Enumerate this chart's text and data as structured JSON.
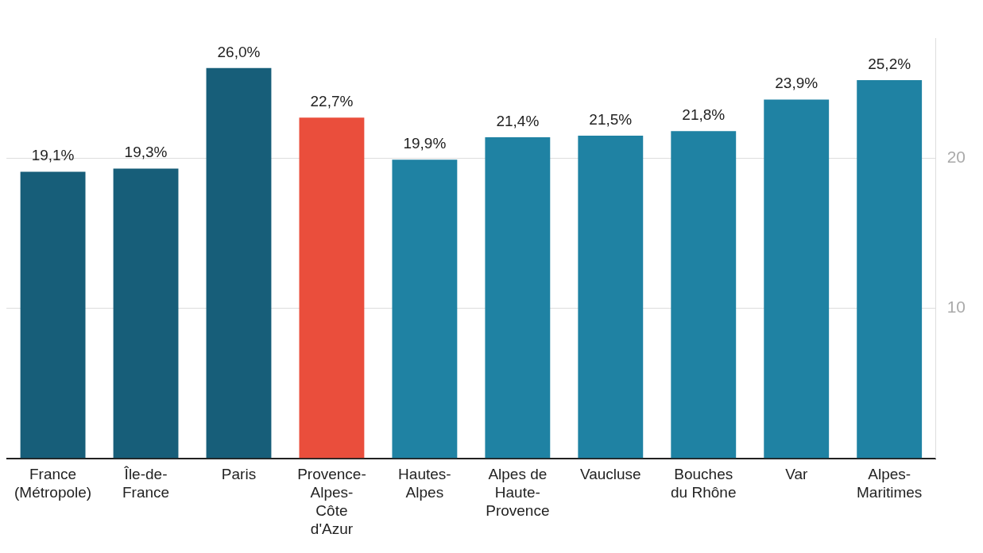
{
  "chart_data": {
    "type": "bar",
    "categories": [
      "France (Métropole)",
      "Île-de-France",
      "Paris",
      "Provence-Alpes-Côte d'Azur",
      "Hautes-Alpes",
      "Alpes de Haute-Provence",
      "Vaucluse",
      "Bouches du Rhône",
      "Var",
      "Alpes-Maritimes"
    ],
    "values": [
      19.1,
      19.3,
      26.0,
      22.7,
      19.9,
      21.4,
      21.5,
      21.8,
      23.9,
      25.2
    ],
    "value_labels": [
      "19,1%",
      "19,3%",
      "26,0%",
      "22,7%",
      "19,9%",
      "21,4%",
      "21,5%",
      "21,8%",
      "23,9%",
      "25,2%"
    ],
    "colors": [
      "#175e79",
      "#175e79",
      "#175e79",
      "#ea4e3c",
      "#1f82a3",
      "#1f82a3",
      "#1f82a3",
      "#1f82a3",
      "#1f82a3",
      "#1f82a3"
    ],
    "ylim": [
      0,
      28
    ],
    "yticks": [
      {
        "value": 0,
        "label": null
      },
      10,
      20
    ],
    "grid": "y",
    "legend": false
  }
}
